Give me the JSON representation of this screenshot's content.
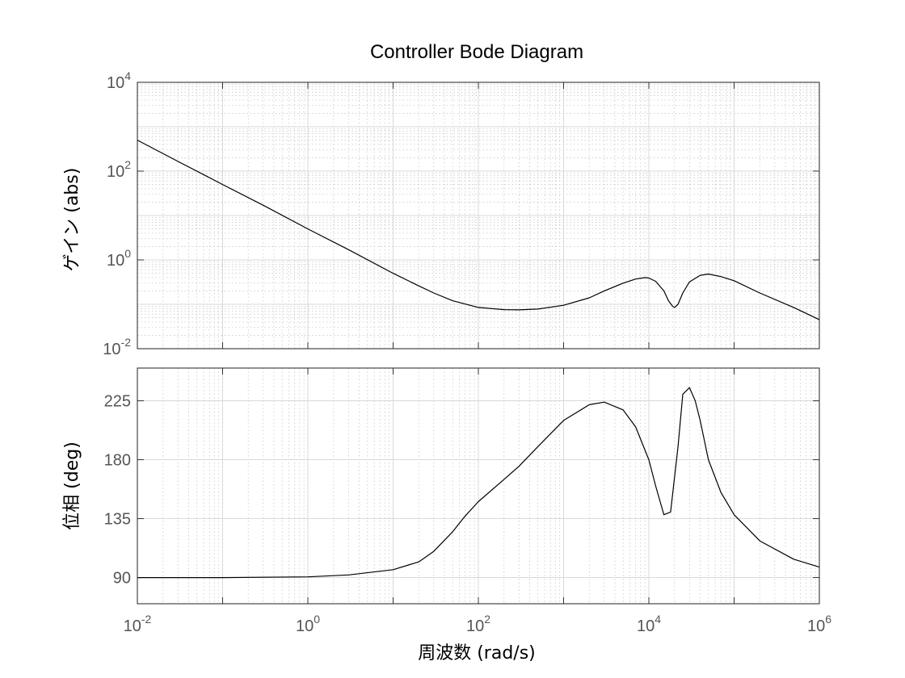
{
  "chart_data": {
    "type": "line",
    "title": "Controller Bode Diagram",
    "xlabel": "周波数  (rad/s)",
    "x_scale": "log",
    "xlim": [
      0.01,
      1000000
    ],
    "x_ticks": [
      {
        "base": "10",
        "exp": "-2"
      },
      {
        "base": "10",
        "exp": "0"
      },
      {
        "base": "10",
        "exp": "2"
      },
      {
        "base": "10",
        "exp": "4"
      },
      {
        "base": "10",
        "exp": "6"
      }
    ],
    "x_tick_values": [
      0.01,
      1,
      100,
      10000,
      1000000
    ],
    "grid": true,
    "panels": [
      {
        "name": "magnitude",
        "ylabel": "ゲイン (abs)",
        "y_scale": "log",
        "ylim": [
          0.01,
          10000
        ],
        "y_ticks": [
          {
            "base": "10",
            "exp": "4"
          },
          {
            "base": "10",
            "exp": "2"
          },
          {
            "base": "10",
            "exp": "0"
          },
          {
            "base": "10",
            "exp": "-2"
          }
        ],
        "y_tick_values": [
          10000,
          100,
          1,
          0.01
        ],
        "series": [
          {
            "x": [
              0.01,
              0.03,
              0.1,
              0.3,
              1,
              3,
              10,
              20,
              30,
              50,
              100,
              200,
              300,
              500,
              1000,
              2000,
              3000,
              5000,
              7000,
              9000,
              10000,
              12000,
              15000,
              17000,
              19000,
              20000,
              22000,
              25000,
              30000,
              40000,
              50000,
              70000,
              100000,
              200000,
              500000,
              1000000
            ],
            "y": [
              500,
              165,
              50,
              17,
              5.0,
              1.7,
              0.5,
              0.26,
              0.18,
              0.12,
              0.085,
              0.076,
              0.075,
              0.078,
              0.095,
              0.14,
              0.2,
              0.3,
              0.37,
              0.4,
              0.39,
              0.33,
              0.2,
              0.12,
              0.09,
              0.085,
              0.1,
              0.18,
              0.32,
              0.45,
              0.48,
              0.42,
              0.34,
              0.18,
              0.085,
              0.045
            ]
          }
        ]
      },
      {
        "name": "phase",
        "ylabel": "位相 (deg)",
        "y_scale": "linear",
        "ylim": [
          70,
          250
        ],
        "y_ticks": [
          "225",
          "180",
          "135",
          "90"
        ],
        "y_tick_values": [
          225,
          180,
          135,
          90
        ],
        "series": [
          {
            "x": [
              0.01,
              0.1,
              1,
              3,
              10,
              20,
              30,
              50,
              70,
              100,
              200,
              300,
              500,
              1000,
              2000,
              3000,
              5000,
              7000,
              10000,
              12000,
              15000,
              18000,
              22000,
              25000,
              30000,
              35000,
              40000,
              50000,
              70000,
              100000,
              200000,
              500000,
              1000000
            ],
            "y": [
              90,
              90,
              90.5,
              92,
              96,
              102,
              110,
              125,
              137,
              148,
              165,
              175,
              190,
              210,
              222,
              224,
              218,
              205,
              180,
              160,
              138,
              140,
              190,
              230,
              235,
              225,
              210,
              180,
              155,
              138,
              118,
              104,
              98
            ]
          }
        ]
      }
    ]
  }
}
